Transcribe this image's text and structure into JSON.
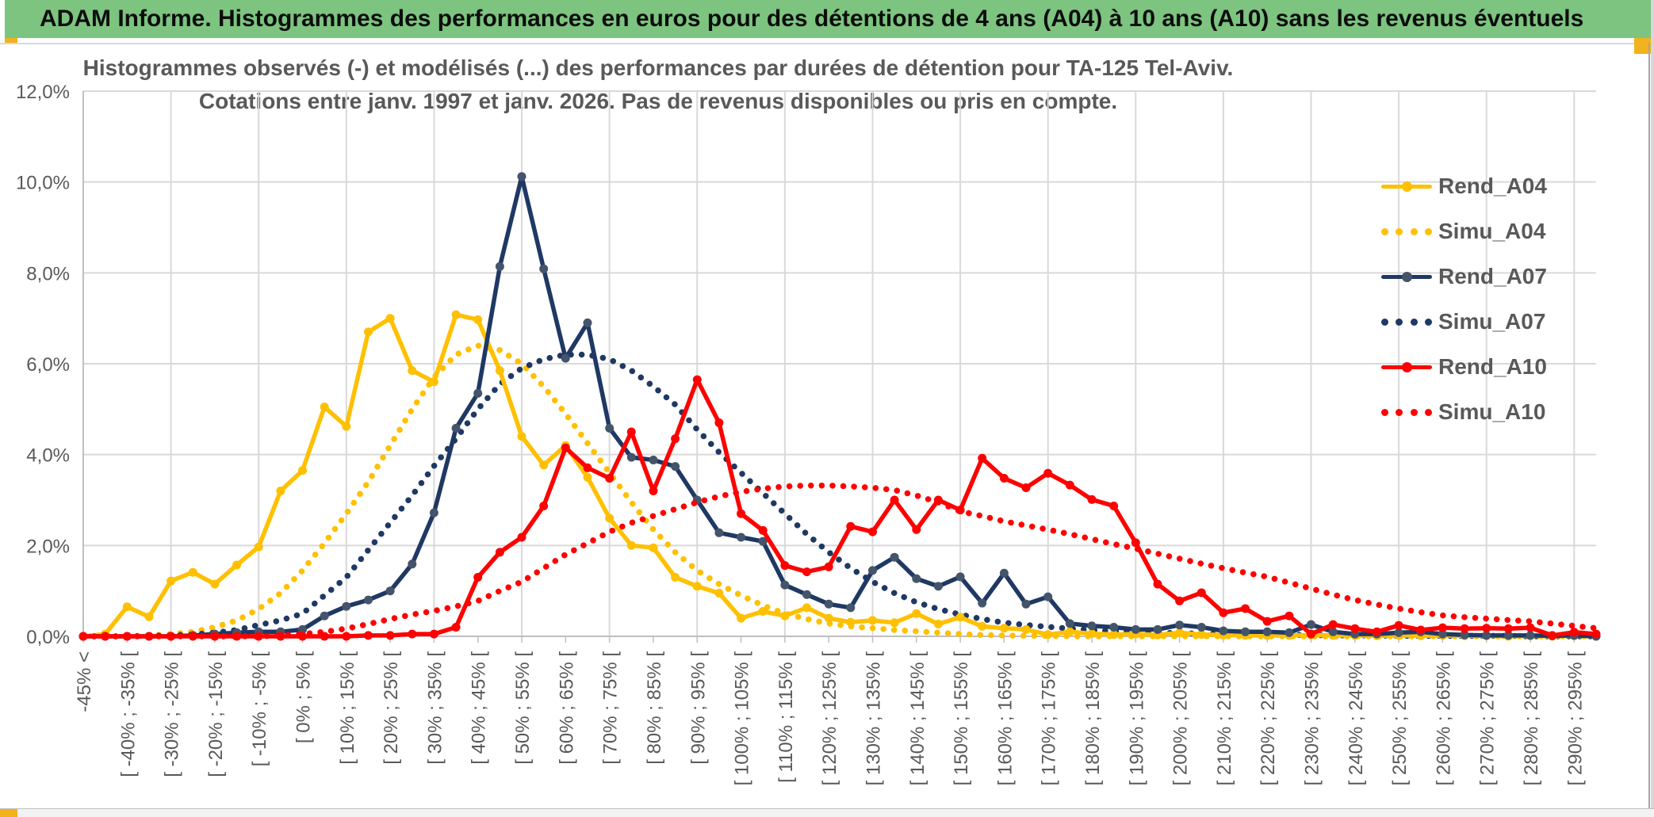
{
  "header": {
    "title": "ADAM Informe. Histogrammes des performances en euros pour des détentions de 4 ans (A04) à 10 ans (A10) sans les revenus éventuels"
  },
  "chart": {
    "title_line1": "Histogrammes observés (-) et modélisés (...) des performances par durées de détention pour TA-125 Tel-Aviv.",
    "title_line2": "Cotations entre janv. 1997 et janv. 2026. Pas de revenus disponibles ou pris en compte."
  },
  "colors": {
    "accent_green": "#7cc47f",
    "accent_gold": "#f2b21d",
    "grid": "#d9d9d9",
    "axis": "#bfbfbf",
    "text": "#595959"
  },
  "chart_data": {
    "type": "line",
    "title": "Histogrammes observés (-) et modélisés (...) des performances par durées de détention pour TA-125 Tel-Aviv. Cotations entre janv. 1997 et janv. 2026. Pas de revenus disponibles ou pris en compte.",
    "xlabel": "",
    "ylabel": "",
    "ylim": [
      0,
      12
    ],
    "grid": true,
    "legend_position": "right",
    "y_tick_labels": [
      "12,0%",
      "10,0%",
      "8,0%",
      "6,0%",
      "4,0%",
      "2,0%",
      "0,0%"
    ],
    "categories": [
      "-45% <",
      "",
      "[ -40% ; -35% [",
      "",
      "[ -30% ; -25% [",
      "",
      "[ -20% ; -15% [",
      "",
      "[ -10% ; -5% [",
      "",
      "[ 0% ; 5% [",
      "",
      "[ 10% ; 15% [",
      "",
      "[ 20% ; 25% [",
      "",
      "[ 30% ; 35% [",
      "",
      "[ 40% ; 45% [",
      "",
      "[ 50% ; 55% [",
      "",
      "[ 60% ; 65% [",
      "",
      "[ 70% ; 75% [",
      "",
      "[ 80% ; 85% [",
      "",
      "[ 90% ; 95% [",
      "",
      "[ 100% ; 105% [",
      "",
      "[ 110% ; 115% [",
      "",
      "[ 120% ; 125% [",
      "",
      "[ 130% ; 135% [",
      "",
      "[ 140% ; 145% [",
      "",
      "[ 150% ; 155% [",
      "",
      "[ 160% ; 165% [",
      "",
      "[ 170% ; 175% [",
      "",
      "[ 180% ; 185% [",
      "",
      "[ 190% ; 195% [",
      "",
      "[ 200% ; 205% [",
      "",
      "[ 210% ; 215% [",
      "",
      "[ 220% ; 225% [",
      "",
      "[ 230% ; 235% [",
      "",
      "[ 240% ; 245% [",
      "",
      "[ 250% ; 255% [",
      "",
      "[ 260% ; 265% [",
      "",
      "[ 270% ; 275% [",
      "",
      "[ 280% ; 285% [",
      "",
      "[ 290% ; 295% [",
      ""
    ],
    "series": [
      {
        "name": "Rend_A04",
        "style": "solid",
        "color": "#FFC000",
        "marker_color": "#FFC000",
        "values": [
          0,
          0.05,
          0.65,
          0.43,
          1.22,
          1.41,
          1.15,
          1.57,
          1.97,
          3.2,
          3.65,
          5.05,
          4.62,
          6.7,
          7.0,
          5.85,
          5.6,
          7.08,
          6.97,
          5.85,
          4.4,
          3.77,
          4.2,
          3.5,
          2.6,
          2.0,
          1.95,
          1.3,
          1.1,
          0.95,
          0.4,
          0.55,
          0.45,
          0.63,
          0.4,
          0.31,
          0.35,
          0.3,
          0.5,
          0.27,
          0.42,
          0.22,
          0.18,
          0.15,
          0.04,
          0.1,
          0.06,
          0.04,
          0.05,
          0.03,
          0.08,
          0.04,
          0.03,
          0.02,
          0.02,
          0.02,
          0.03,
          0.02,
          0.02,
          0.01,
          0.02,
          0.01,
          0.02,
          0.01,
          0.01,
          0,
          0.01,
          0,
          0.01,
          0
        ]
      },
      {
        "name": "Simu_A04",
        "style": "dotted",
        "color": "#FFC000",
        "marker_color": "#FFC000",
        "values": [
          0,
          0,
          0,
          0.02,
          0.05,
          0.1,
          0.2,
          0.35,
          0.6,
          0.95,
          1.45,
          2.05,
          2.7,
          3.4,
          4.2,
          5.0,
          5.7,
          6.2,
          6.4,
          6.3,
          6.0,
          5.5,
          4.9,
          4.25,
          3.6,
          2.95,
          2.35,
          1.85,
          1.45,
          1.15,
          0.9,
          0.68,
          0.5,
          0.38,
          0.28,
          0.22,
          0.18,
          0.14,
          0.11,
          0.08,
          0.05,
          0.03,
          0.02,
          0.01,
          0.01,
          0,
          0,
          0,
          0,
          0,
          0,
          0,
          0,
          0,
          0,
          0,
          0,
          0,
          0,
          0,
          0,
          0,
          0,
          0,
          0,
          0,
          0,
          0,
          0,
          0
        ]
      },
      {
        "name": "Rend_A07",
        "style": "solid",
        "color": "#1F3864",
        "marker_color": "#44546A",
        "values": [
          0,
          0,
          0,
          0,
          0,
          0.02,
          0.05,
          0.08,
          0.1,
          0.1,
          0.15,
          0.45,
          0.66,
          0.8,
          1.0,
          1.59,
          2.72,
          4.58,
          5.35,
          8.14,
          10.12,
          8.09,
          6.12,
          6.9,
          4.58,
          3.94,
          3.88,
          3.74,
          3.0,
          2.28,
          2.18,
          2.09,
          1.13,
          0.92,
          0.71,
          0.63,
          1.45,
          1.74,
          1.27,
          1.1,
          1.31,
          0.73,
          1.39,
          0.71,
          0.87,
          0.28,
          0.23,
          0.2,
          0.15,
          0.15,
          0.25,
          0.2,
          0.12,
          0.1,
          0.1,
          0.08,
          0.26,
          0.1,
          0.05,
          0.05,
          0.08,
          0.1,
          0.05,
          0.03,
          0.02,
          0.02,
          0.02,
          0.01,
          0.02,
          0
        ]
      },
      {
        "name": "Simu_A07",
        "style": "dotted",
        "color": "#1F3864",
        "marker_color": "#1F3864",
        "values": [
          0,
          0,
          0,
          0.01,
          0.02,
          0.04,
          0.08,
          0.14,
          0.25,
          0.35,
          0.5,
          0.9,
          1.3,
          1.9,
          2.5,
          3.1,
          3.75,
          4.35,
          5.0,
          5.55,
          5.9,
          6.1,
          6.2,
          6.2,
          6.1,
          5.85,
          5.5,
          5.1,
          4.55,
          4.05,
          3.6,
          3.15,
          2.7,
          2.25,
          1.85,
          1.5,
          1.2,
          0.95,
          0.75,
          0.6,
          0.48,
          0.38,
          0.3,
          0.25,
          0.21,
          0.17,
          0.14,
          0.11,
          0.09,
          0.08,
          0.07,
          0.06,
          0.05,
          0.04,
          0.04,
          0.03,
          0.03,
          0.02,
          0.02,
          0.02,
          0.01,
          0.01,
          0.01,
          0.01,
          0.01,
          0.01,
          0,
          0,
          0,
          0
        ]
      },
      {
        "name": "Rend_A10",
        "style": "solid",
        "color": "#FF0000",
        "marker_color": "#FF0000",
        "values": [
          0,
          0,
          0,
          0,
          0,
          0,
          0,
          0,
          0,
          0,
          0,
          0,
          0,
          0.02,
          0.02,
          0.05,
          0.05,
          0.2,
          1.3,
          1.85,
          2.18,
          2.87,
          4.15,
          3.71,
          3.48,
          4.5,
          3.2,
          4.35,
          5.65,
          4.7,
          2.7,
          2.33,
          1.56,
          1.42,
          1.53,
          2.42,
          2.3,
          3.0,
          2.35,
          3.0,
          2.78,
          3.92,
          3.48,
          3.27,
          3.59,
          3.33,
          3.01,
          2.87,
          2.06,
          1.15,
          0.78,
          0.96,
          0.52,
          0.61,
          0.33,
          0.45,
          0.05,
          0.26,
          0.17,
          0.1,
          0.24,
          0.14,
          0.19,
          0.17,
          0.18,
          0.17,
          0.19,
          0.02,
          0.09,
          0.05
        ]
      },
      {
        "name": "Simu_A10",
        "style": "dotted",
        "color": "#FF0000",
        "marker_color": "#FF0000",
        "values": [
          0,
          0,
          0,
          0,
          0,
          0,
          0,
          0,
          0,
          0.02,
          0.05,
          0.1,
          0.17,
          0.27,
          0.38,
          0.48,
          0.56,
          0.66,
          0.78,
          1.0,
          1.2,
          1.5,
          1.8,
          2.05,
          2.3,
          2.5,
          2.65,
          2.8,
          2.95,
          3.08,
          3.18,
          3.25,
          3.3,
          3.32,
          3.32,
          3.3,
          3.27,
          3.22,
          3.1,
          2.95,
          2.75,
          2.65,
          2.53,
          2.44,
          2.35,
          2.25,
          2.14,
          2.03,
          1.93,
          1.82,
          1.71,
          1.6,
          1.5,
          1.4,
          1.31,
          1.18,
          1.05,
          0.92,
          0.8,
          0.7,
          0.61,
          0.53,
          0.46,
          0.42,
          0.39,
          0.36,
          0.33,
          0.28,
          0.23,
          0.18
        ]
      }
    ]
  }
}
